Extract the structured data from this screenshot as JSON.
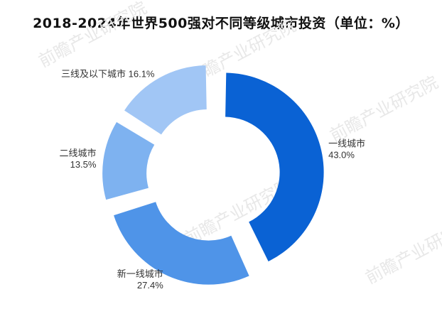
{
  "title": "2018-2024年世界500强对不同等级城市投资（单位：%）",
  "watermark": "前瞻产业研究院",
  "chart_data": {
    "type": "pie",
    "variant": "donut-exploded",
    "title": "2018-2024年世界500强对不同等级城市投资（单位：%）",
    "unit": "%",
    "categories": [
      "一线城市",
      "新一线城市",
      "二线城市",
      "三线及以下城市"
    ],
    "values": [
      43.0,
      27.4,
      13.5,
      16.1
    ],
    "value_labels": [
      "43.0%",
      "27.4%",
      "13.5%",
      "16.1%"
    ],
    "colors": [
      "#0a62d4",
      "#4f94e8",
      "#7eb2f0",
      "#a1c6f5"
    ],
    "legend": "none"
  }
}
